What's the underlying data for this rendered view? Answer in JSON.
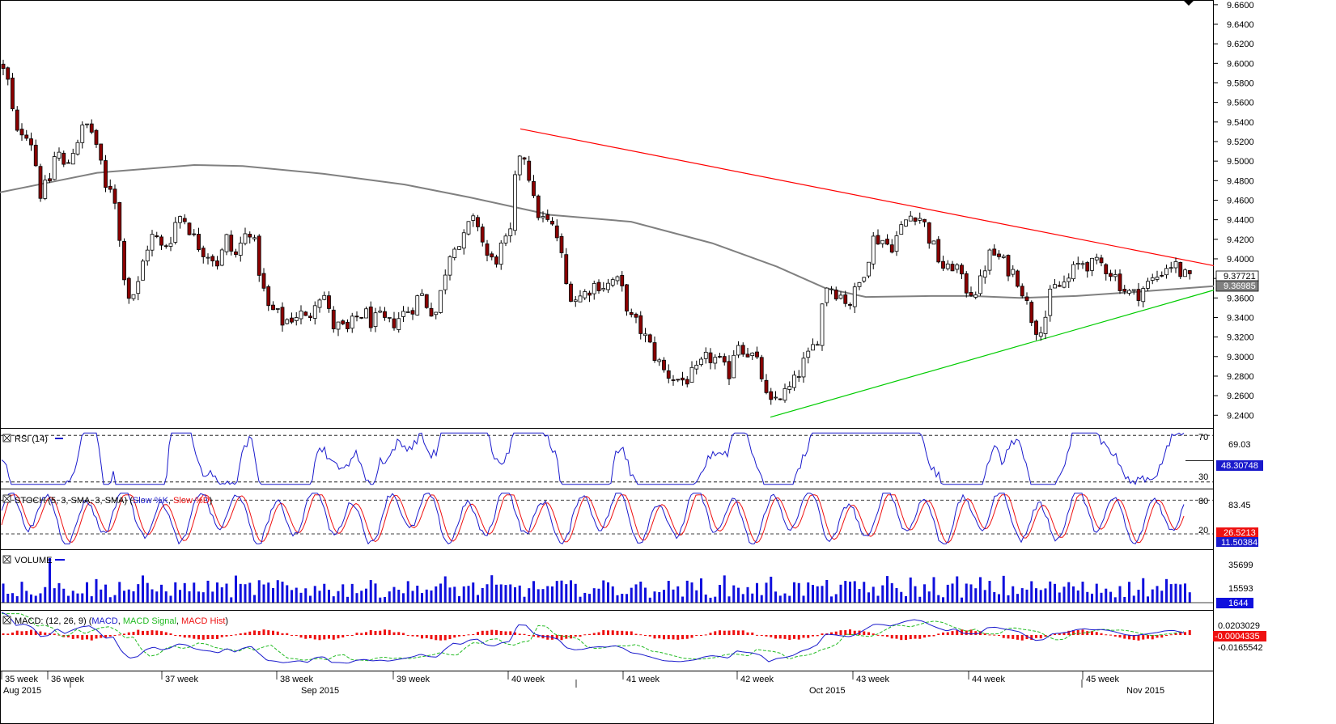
{
  "chart_data": [
    {
      "type": "candlestick",
      "panel": "price",
      "y_axis": [
        "9.6600",
        "9.6400",
        "9.6200",
        "9.6000",
        "9.5800",
        "9.5600",
        "9.5400",
        "9.5200",
        "9.5000",
        "9.4800",
        "9.4600",
        "9.4400",
        "9.4200",
        "9.4000",
        "9.3800",
        "9.3600",
        "9.3400",
        "9.3200",
        "9.3000",
        "9.2800",
        "9.2600",
        "9.2400"
      ],
      "ylim": [
        9.227,
        9.664
      ],
      "last_price_label": "9.37721",
      "ma_label": "9.36985",
      "moving_average": [
        [
          0,
          9.468
        ],
        [
          60,
          9.478
        ],
        [
          120,
          9.488
        ],
        [
          240,
          9.496
        ],
        [
          300,
          9.495
        ],
        [
          400,
          9.487
        ],
        [
          500,
          9.476
        ],
        [
          580,
          9.463
        ],
        [
          680,
          9.445
        ],
        [
          780,
          9.438
        ],
        [
          880,
          9.416
        ],
        [
          960,
          9.392
        ],
        [
          1020,
          9.37
        ],
        [
          1070,
          9.361
        ],
        [
          1150,
          9.362
        ],
        [
          1200,
          9.362
        ],
        [
          1260,
          9.36
        ],
        [
          1330,
          9.362
        ],
        [
          1400,
          9.366
        ],
        [
          1500,
          9.372
        ]
      ],
      "ohlc_path": [
        [
          0,
          9.6
        ],
        [
          10,
          9.58
        ],
        [
          20,
          9.525
        ],
        [
          30,
          9.535
        ],
        [
          40,
          9.518
        ],
        [
          50,
          9.468
        ],
        [
          60,
          9.475
        ],
        [
          70,
          9.515
        ],
        [
          80,
          9.49
        ],
        [
          90,
          9.512
        ],
        [
          100,
          9.53
        ],
        [
          110,
          9.538
        ],
        [
          120,
          9.515
        ],
        [
          130,
          9.47
        ],
        [
          140,
          9.478
        ],
        [
          150,
          9.4
        ],
        [
          160,
          9.36
        ],
        [
          170,
          9.37
        ],
        [
          180,
          9.41
        ],
        [
          190,
          9.425
        ],
        [
          200,
          9.41
        ],
        [
          210,
          9.42
        ],
        [
          220,
          9.445
        ],
        [
          230,
          9.44
        ],
        [
          240,
          9.42
        ],
        [
          250,
          9.41
        ],
        [
          260,
          9.405
        ],
        [
          270,
          9.395
        ],
        [
          280,
          9.42
        ],
        [
          290,
          9.4
        ],
        [
          300,
          9.42
        ],
        [
          310,
          9.432
        ],
        [
          320,
          9.39
        ],
        [
          330,
          9.35
        ],
        [
          340,
          9.345
        ],
        [
          350,
          9.335
        ],
        [
          360,
          9.34
        ],
        [
          370,
          9.345
        ],
        [
          380,
          9.335
        ],
        [
          390,
          9.362
        ],
        [
          400,
          9.365
        ],
        [
          410,
          9.332
        ],
        [
          420,
          9.33
        ],
        [
          430,
          9.325
        ],
        [
          440,
          9.34
        ],
        [
          450,
          9.345
        ],
        [
          460,
          9.335
        ],
        [
          470,
          9.338
        ],
        [
          480,
          9.332
        ],
        [
          490,
          9.338
        ],
        [
          500,
          9.345
        ],
        [
          510,
          9.352
        ],
        [
          520,
          9.365
        ],
        [
          530,
          9.35
        ],
        [
          540,
          9.345
        ],
        [
          550,
          9.388
        ],
        [
          560,
          9.42
        ],
        [
          570,
          9.412
        ],
        [
          580,
          9.435
        ],
        [
          590,
          9.438
        ],
        [
          600,
          9.405
        ],
        [
          610,
          9.395
        ],
        [
          620,
          9.412
        ],
        [
          630,
          9.418
        ],
        [
          640,
          9.51
        ],
        [
          650,
          9.505
        ],
        [
          660,
          9.455
        ],
        [
          670,
          9.44
        ],
        [
          680,
          9.435
        ],
        [
          690,
          9.42
        ],
        [
          700,
          9.372
        ],
        [
          710,
          9.36
        ],
        [
          720,
          9.362
        ],
        [
          730,
          9.372
        ],
        [
          740,
          9.375
        ],
        [
          750,
          9.372
        ],
        [
          760,
          9.38
        ],
        [
          770,
          9.365
        ],
        [
          780,
          9.338
        ],
        [
          790,
          9.33
        ],
        [
          800,
          9.315
        ],
        [
          810,
          9.3
        ],
        [
          820,
          9.285
        ],
        [
          830,
          9.28
        ],
        [
          840,
          9.275
        ],
        [
          850,
          9.278
        ],
        [
          860,
          9.282
        ],
        [
          870,
          9.295
        ],
        [
          880,
          9.3
        ],
        [
          890,
          9.292
        ],
        [
          900,
          9.28
        ],
        [
          910,
          9.318
        ],
        [
          920,
          9.308
        ],
        [
          930,
          9.3
        ],
        [
          940,
          9.285
        ],
        [
          950,
          9.245
        ],
        [
          960,
          9.26
        ],
        [
          970,
          9.262
        ],
        [
          980,
          9.27
        ],
        [
          990,
          9.29
        ],
        [
          1000,
          9.3
        ],
        [
          1010,
          9.32
        ],
        [
          1020,
          9.375
        ],
        [
          1030,
          9.37
        ],
        [
          1040,
          9.362
        ],
        [
          1050,
          9.355
        ],
        [
          1060,
          9.37
        ],
        [
          1070,
          9.395
        ],
        [
          1080,
          9.422
        ],
        [
          1090,
          9.42
        ],
        [
          1100,
          9.412
        ],
        [
          1110,
          9.425
        ],
        [
          1120,
          9.44
        ],
        [
          1130,
          9.448
        ],
        [
          1140,
          9.44
        ],
        [
          1150,
          9.418
        ],
        [
          1160,
          9.4
        ],
        [
          1170,
          9.385
        ],
        [
          1180,
          9.398
        ],
        [
          1190,
          9.372
        ],
        [
          1200,
          9.368
        ],
        [
          1210,
          9.37
        ],
        [
          1220,
          9.402
        ],
        [
          1230,
          9.405
        ],
        [
          1240,
          9.395
        ],
        [
          1250,
          9.388
        ],
        [
          1260,
          9.378
        ],
        [
          1270,
          9.35
        ],
        [
          1280,
          9.33
        ],
        [
          1290,
          9.335
        ],
        [
          1300,
          9.368
        ],
        [
          1310,
          9.372
        ],
        [
          1320,
          9.378
        ],
        [
          1330,
          9.392
        ],
        [
          1340,
          9.398
        ],
        [
          1350,
          9.392
        ],
        [
          1360,
          9.395
        ],
        [
          1370,
          9.39
        ],
        [
          1380,
          9.38
        ],
        [
          1390,
          9.368
        ],
        [
          1400,
          9.362
        ],
        [
          1410,
          9.368
        ],
        [
          1420,
          9.375
        ],
        [
          1430,
          9.382
        ],
        [
          1440,
          9.392
        ],
        [
          1450,
          9.395
        ],
        [
          1460,
          9.385
        ],
        [
          1470,
          9.377
        ]
      ],
      "trendlines": [
        {
          "color": "#ff0000",
          "from": [
            643,
            9.533
          ],
          "to": [
            1500,
            9.393
          ]
        },
        {
          "color": "#00cc00",
          "from": [
            952,
            9.238
          ],
          "to": [
            1500,
            9.368
          ]
        }
      ]
    },
    {
      "type": "line",
      "panel": "rsi",
      "legend": "RSI (14)",
      "ylim": [
        25,
        75
      ],
      "levels": [
        {
          "label": "70",
          "value": 70
        },
        {
          "label": "30",
          "value": 30
        }
      ],
      "top_label": "69.03",
      "last_label": "48.30748"
    },
    {
      "type": "line",
      "panel": "stoch",
      "legend_prefix": "STOCH (5, 3, SMA, 3, SMA) (",
      "legend_k": "Slow %K",
      "legend_sep": ", ",
      "legend_d": "Slow %D",
      "legend_suffix": ")",
      "ylim": [
        0,
        100
      ],
      "levels": [
        {
          "label": "80",
          "value": 80
        },
        {
          "label": "20",
          "value": 20
        }
      ],
      "top_label": "83.45",
      "last_d_label": "26.5213",
      "last_k_label": "11.50384"
    },
    {
      "type": "bar",
      "panel": "volume",
      "legend": "VOLUME",
      "axis_labels": [
        "35699",
        "15593"
      ],
      "last_label": "1644"
    },
    {
      "type": "line",
      "panel": "macd",
      "legend_prefix": "MACD: (12, 26, 9) (",
      "legend_macd": "MACD",
      "legend_sep": ", ",
      "legend_signal": "MACD Signal",
      "legend_hist": "MACD Hist",
      "legend_suffix": ")",
      "axis_labels": [
        "0.0203029",
        "-0.0165542"
      ],
      "last_label": "-0.0004335"
    }
  ],
  "x_axis": {
    "weeks": [
      "35 week",
      "36 week",
      "37 week",
      "38 week",
      "39 week",
      "40 week",
      "41 week",
      "42 week",
      "43 week",
      "44 week",
      "45 week"
    ],
    "months": [
      "Aug 2015",
      "Sep 2015",
      "Oct 2015",
      "Nov 2015"
    ]
  },
  "colors": {
    "up_candle": "#ffffff",
    "down_candle": "#8b0000",
    "ma": "#808080",
    "rsi": "#1a1acc",
    "stoch_k": "#1a1acc",
    "stoch_d": "#ee1111",
    "volume": "#1010dd",
    "macd": "#1a1acc",
    "signal": "#22bb22",
    "hist": "#ee1111"
  }
}
